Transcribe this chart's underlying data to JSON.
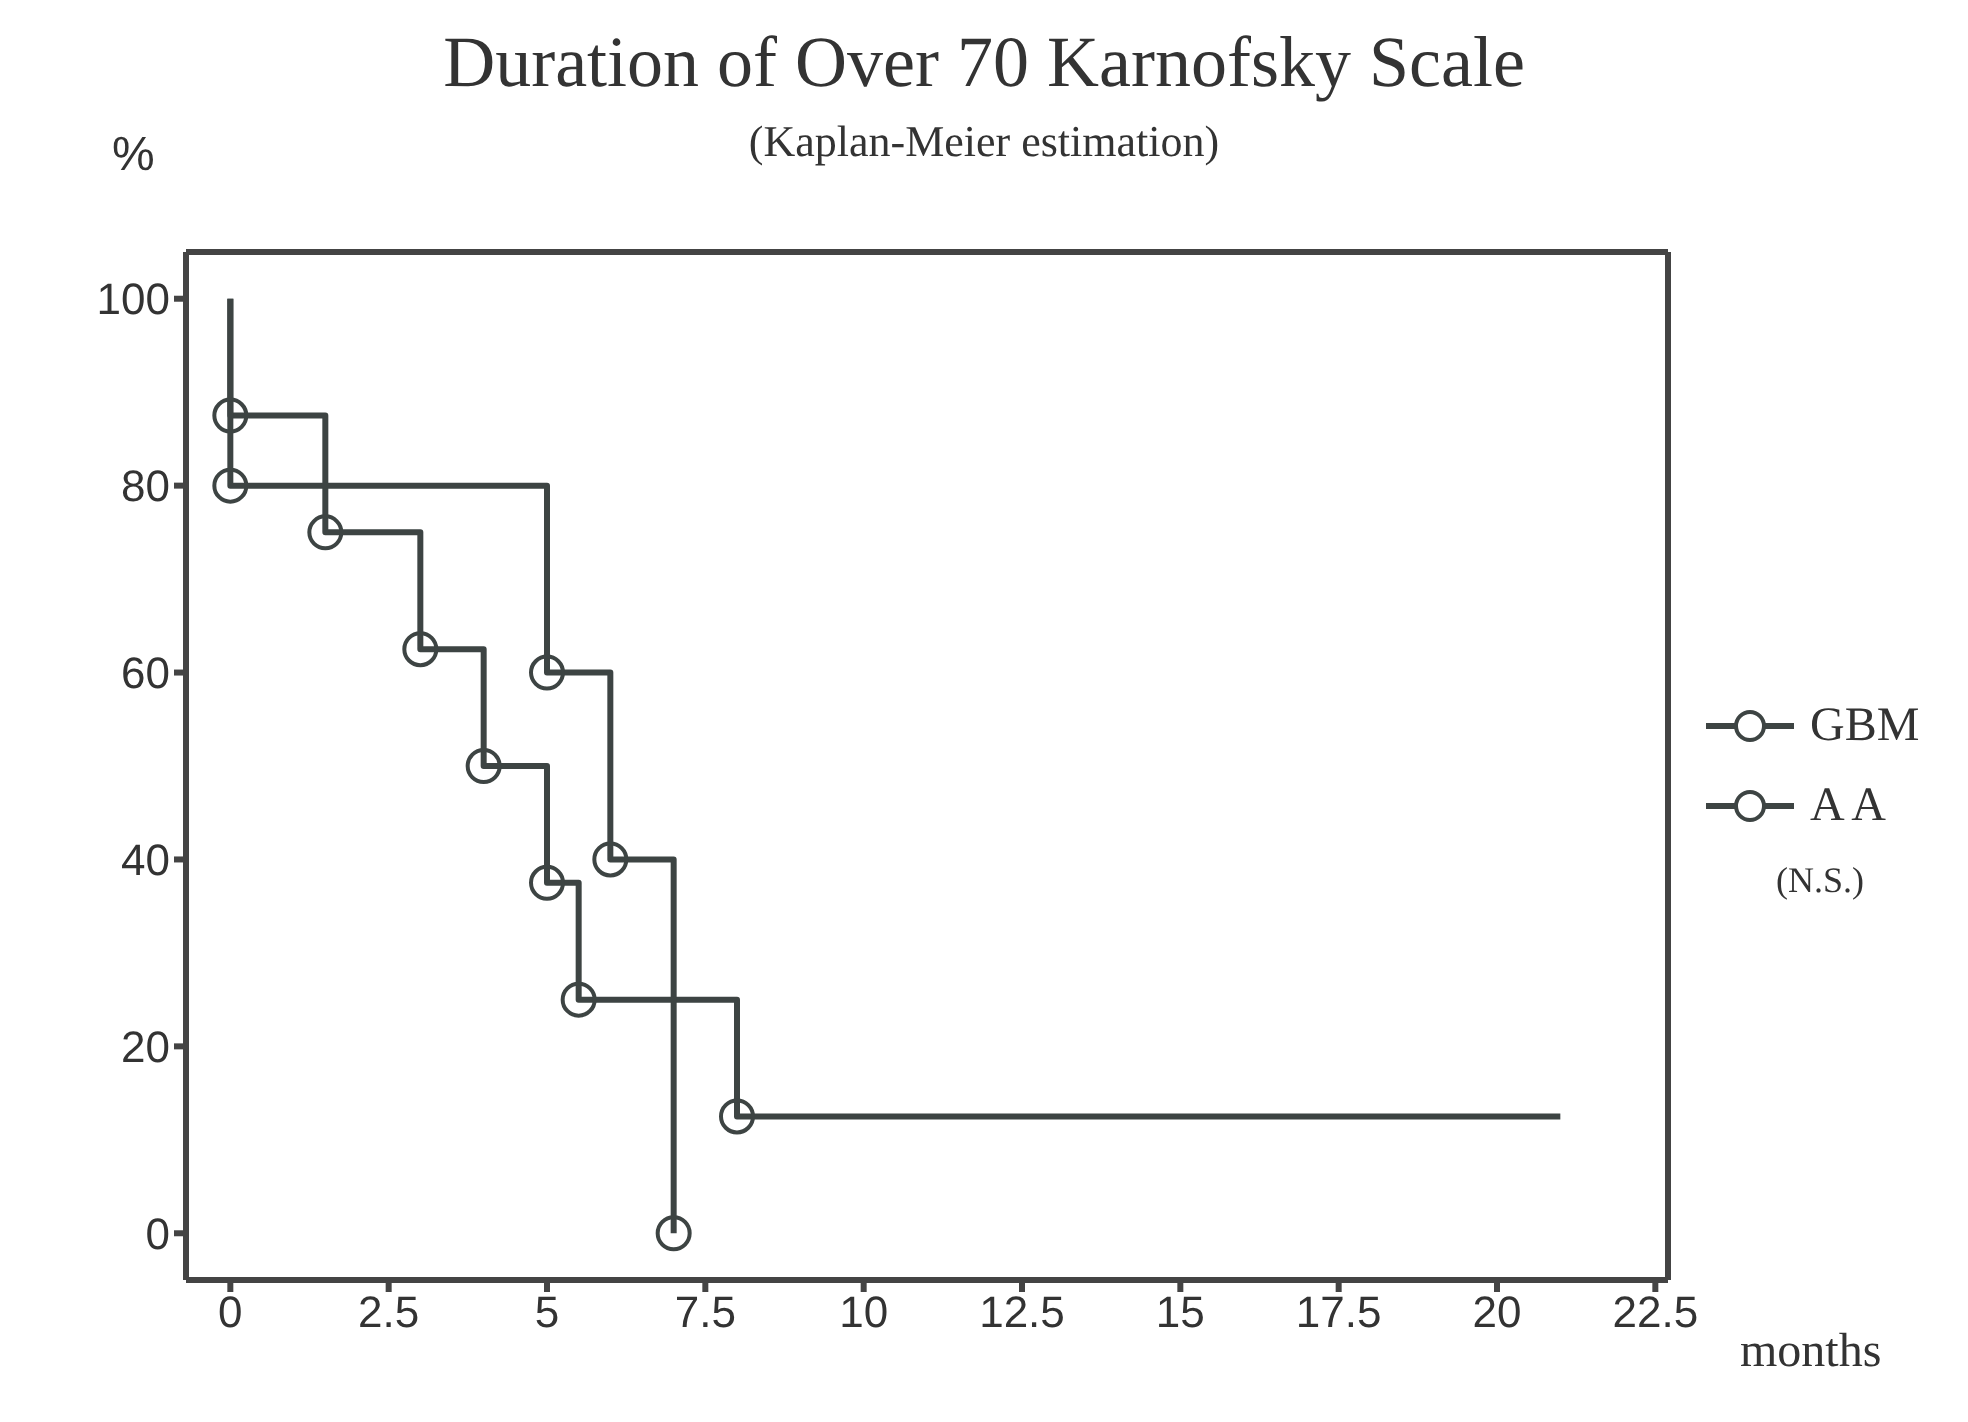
{
  "chart_data": {
    "type": "step",
    "title": "Duration of Over 70 Karnofsky Scale",
    "subtitle": "(Kaplan-Meier estimation)",
    "xlabel": "months",
    "ylabel": "%",
    "series": [
      {
        "name": "GBM",
        "color": "#3d4443",
        "x": [
          0,
          0,
          1.5,
          3,
          4,
          5,
          5.5,
          8,
          21
        ],
        "values": [
          100,
          87.5,
          75,
          62.5,
          50,
          37.5,
          25,
          12.5,
          12.5
        ]
      },
      {
        "name": "A A",
        "color": "#3d4443",
        "x": [
          0,
          0,
          5,
          6,
          7
        ],
        "values": [
          100,
          80,
          60,
          40,
          0
        ]
      }
    ],
    "xlim": [
      -0.7,
      22.7
    ],
    "xticks": [
      0,
      2.5,
      5,
      7.5,
      10,
      12.5,
      15,
      17.5,
      20,
      22.5
    ],
    "ylim": [
      -5,
      105
    ],
    "yticks": [
      0,
      20,
      40,
      60,
      80,
      100
    ],
    "annotations": [
      "(N.S.)"
    ],
    "legend": "right",
    "marker": "circle",
    "line_style": "solid"
  }
}
